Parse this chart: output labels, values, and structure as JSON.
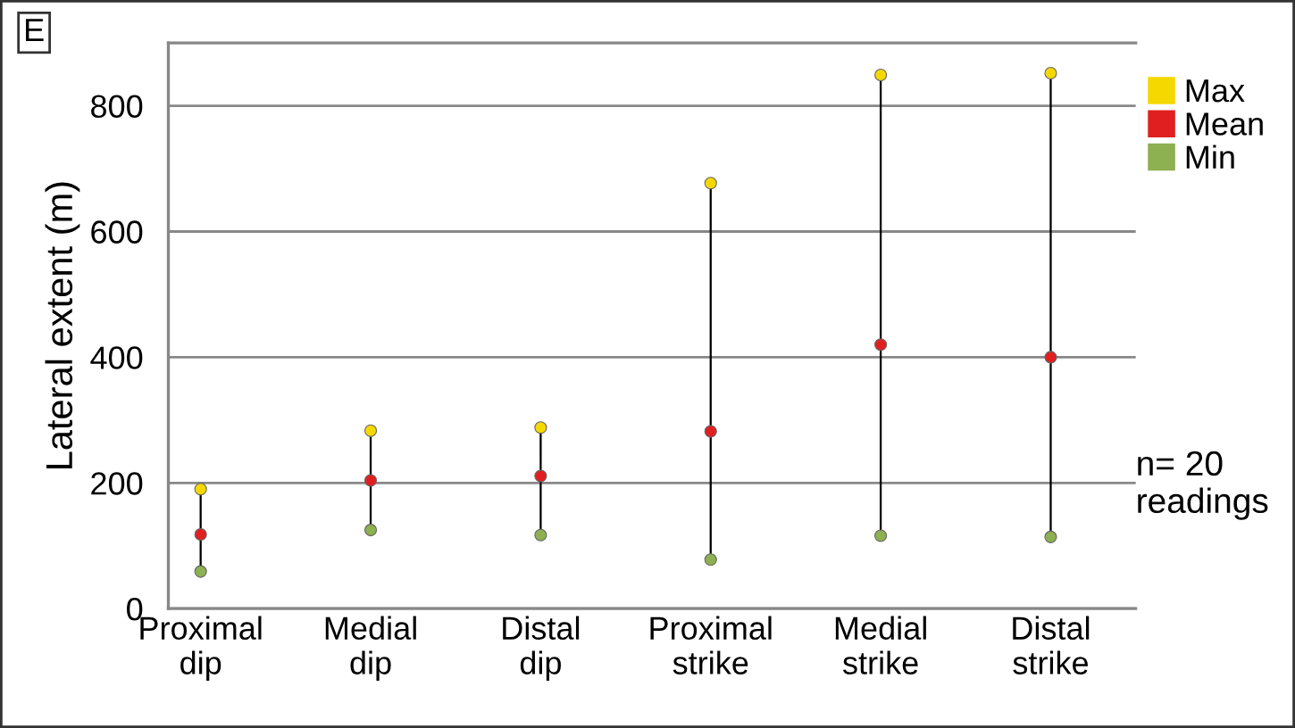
{
  "chart_data": {
    "type": "scatter",
    "ylabel": "Lateral extent (m)",
    "categories": [
      "Proximal\ndip",
      "Medial\ndip",
      "Distal\ndip",
      "Proximal\nstrike",
      "Medial\nstrike",
      "Distal\nstrike"
    ],
    "series": [
      {
        "name": "Max",
        "color": "#f5d800",
        "values": [
          190,
          283,
          288,
          677,
          849,
          852
        ]
      },
      {
        "name": "Mean",
        "color": "#e02020",
        "values": [
          118,
          204,
          211,
          282,
          420,
          400
        ]
      },
      {
        "name": "Min",
        "color": "#8db050",
        "values": [
          59,
          125,
          117,
          78,
          116,
          114
        ]
      }
    ],
    "ylim": [
      0,
      900
    ],
    "yticks": [
      0,
      200,
      400,
      600,
      800
    ],
    "grid": "y",
    "legend": "top right",
    "marker": "circle",
    "annotations": [
      "E",
      "n= 20\nreadings"
    ]
  }
}
